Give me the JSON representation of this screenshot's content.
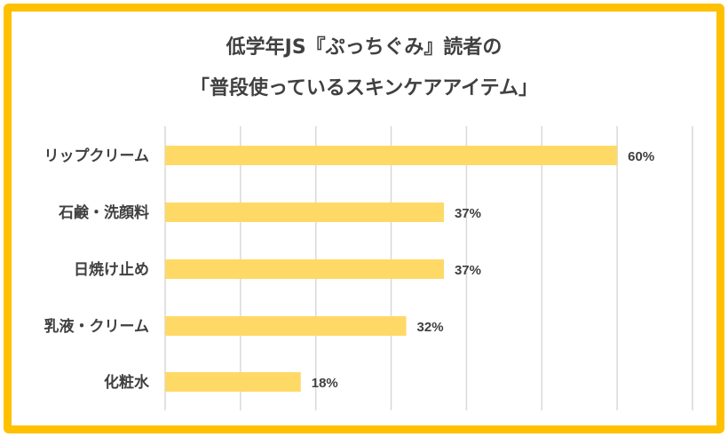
{
  "chart_data": {
    "type": "bar",
    "orientation": "horizontal",
    "title_lines": [
      "低学年JS『ぷっちぐみ』読者の",
      "「普段使っているスキンケアアイテム」"
    ],
    "categories": [
      "リップクリーム",
      "石鹸・洗顔料",
      "日焼け止め",
      "乳液・クリーム",
      "化粧水"
    ],
    "values": [
      60,
      37,
      37,
      32,
      18
    ],
    "value_labels": [
      "60%",
      "37%",
      "37%",
      "32%",
      "18%"
    ],
    "unit": "%",
    "xlim": [
      0,
      70
    ],
    "grid": true,
    "legend": "none",
    "bar_color": "#FFD966",
    "grid_color": "#D9D9D9",
    "frame_color": "#FFC000"
  }
}
